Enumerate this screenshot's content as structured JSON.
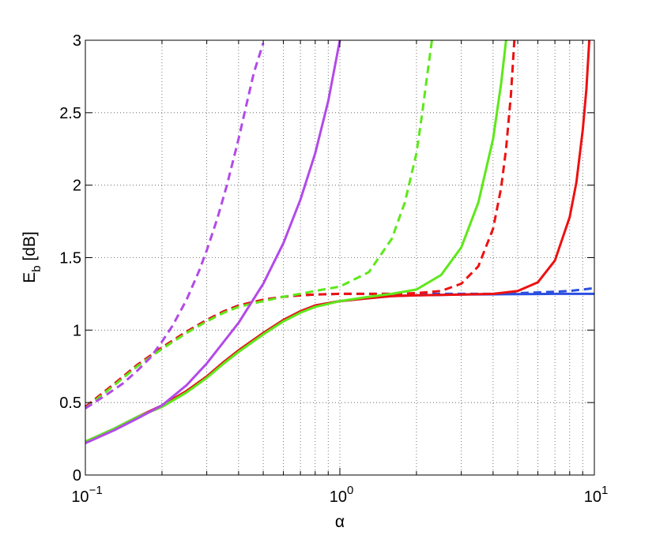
{
  "chart_data": {
    "type": "line",
    "xlabel": "α",
    "ylabel": {
      "main": "E",
      "sub": "b",
      "unit": " [dB]"
    },
    "x_scale": "log",
    "xlim": [
      0.1,
      10
    ],
    "ylim": [
      0,
      3
    ],
    "grid": true,
    "x_ticks": [
      {
        "value": 0.1,
        "base": "10",
        "exp": "−1"
      },
      {
        "value": 1,
        "base": "10",
        "exp": "0"
      },
      {
        "value": 10,
        "base": "10",
        "exp": "1"
      }
    ],
    "y_ticks": [
      "0",
      "0.5",
      "1",
      "1.5",
      "2",
      "2.5",
      "3"
    ],
    "series": [
      {
        "color": "#2b4fe0",
        "style": "solid",
        "x": [
          0.1,
          0.13,
          0.16,
          0.2,
          0.25,
          0.3,
          0.35,
          0.4,
          0.5,
          0.6,
          0.7,
          0.8,
          1.0,
          1.3,
          1.6,
          2,
          2.5,
          3,
          4,
          5,
          6,
          7,
          8,
          10
        ],
        "y": [
          0.23,
          0.32,
          0.4,
          0.48,
          0.58,
          0.68,
          0.78,
          0.86,
          0.98,
          1.07,
          1.13,
          1.17,
          1.2,
          1.22,
          1.235,
          1.24,
          1.243,
          1.245,
          1.247,
          1.248,
          1.249,
          1.25,
          1.25,
          1.25
        ]
      },
      {
        "color": "#2b4fe0",
        "style": "dashed",
        "x": [
          0.1,
          0.13,
          0.16,
          0.2,
          0.25,
          0.3,
          0.35,
          0.4,
          0.5,
          0.6,
          0.7,
          0.8,
          1.0,
          1.3,
          1.6,
          2,
          2.5,
          3,
          4,
          5,
          6,
          7,
          8,
          9,
          10
        ],
        "y": [
          0.47,
          0.63,
          0.76,
          0.88,
          0.99,
          1.07,
          1.13,
          1.17,
          1.21,
          1.23,
          1.24,
          1.245,
          1.25,
          1.25,
          1.25,
          1.25,
          1.25,
          1.25,
          1.25,
          1.255,
          1.26,
          1.265,
          1.27,
          1.28,
          1.29
        ]
      },
      {
        "color": "#ee1111",
        "style": "solid",
        "x": [
          0.1,
          0.13,
          0.16,
          0.2,
          0.25,
          0.3,
          0.35,
          0.4,
          0.5,
          0.6,
          0.7,
          0.8,
          1.0,
          1.3,
          1.6,
          2,
          2.5,
          3,
          4,
          5,
          6,
          7,
          8,
          8.5,
          9,
          9.3,
          9.55
        ],
        "y": [
          0.23,
          0.32,
          0.4,
          0.48,
          0.58,
          0.68,
          0.78,
          0.86,
          0.98,
          1.07,
          1.13,
          1.17,
          1.2,
          1.22,
          1.235,
          1.24,
          1.243,
          1.245,
          1.25,
          1.27,
          1.33,
          1.48,
          1.78,
          2.02,
          2.38,
          2.66,
          3.0
        ]
      },
      {
        "color": "#ee1111",
        "style": "dashed",
        "x": [
          0.1,
          0.13,
          0.16,
          0.2,
          0.25,
          0.3,
          0.35,
          0.4,
          0.5,
          0.6,
          0.7,
          0.8,
          1.0,
          1.3,
          1.6,
          2,
          2.5,
          3,
          3.5,
          4,
          4.3,
          4.5,
          4.7,
          4.85
        ],
        "y": [
          0.47,
          0.63,
          0.76,
          0.88,
          0.99,
          1.07,
          1.13,
          1.17,
          1.21,
          1.23,
          1.24,
          1.245,
          1.25,
          1.25,
          1.25,
          1.255,
          1.27,
          1.32,
          1.44,
          1.7,
          1.98,
          2.25,
          2.62,
          3.0
        ]
      },
      {
        "color": "#5ee81a",
        "style": "solid",
        "x": [
          0.1,
          0.13,
          0.16,
          0.2,
          0.25,
          0.3,
          0.35,
          0.4,
          0.5,
          0.6,
          0.7,
          0.8,
          1.0,
          1.3,
          1.6,
          2,
          2.5,
          3,
          3.5,
          4,
          4.3,
          4.5
        ],
        "y": [
          0.23,
          0.32,
          0.4,
          0.47,
          0.57,
          0.67,
          0.77,
          0.85,
          0.97,
          1.06,
          1.12,
          1.16,
          1.2,
          1.23,
          1.25,
          1.28,
          1.38,
          1.57,
          1.88,
          2.32,
          2.7,
          3.0
        ]
      },
      {
        "color": "#5ee81a",
        "style": "dashed",
        "x": [
          0.1,
          0.13,
          0.16,
          0.2,
          0.25,
          0.3,
          0.35,
          0.4,
          0.5,
          0.6,
          0.7,
          0.8,
          1.0,
          1.3,
          1.6,
          1.8,
          2.0,
          2.1,
          2.2,
          2.3
        ],
        "y": [
          0.46,
          0.62,
          0.75,
          0.87,
          0.98,
          1.06,
          1.12,
          1.16,
          1.2,
          1.23,
          1.25,
          1.27,
          1.3,
          1.4,
          1.63,
          1.88,
          2.22,
          2.48,
          2.75,
          3.0
        ]
      },
      {
        "color": "#b24ae8",
        "style": "solid",
        "x": [
          0.1,
          0.13,
          0.16,
          0.2,
          0.25,
          0.3,
          0.35,
          0.4,
          0.5,
          0.6,
          0.7,
          0.8,
          0.9,
          1.0
        ],
        "y": [
          0.22,
          0.31,
          0.39,
          0.48,
          0.62,
          0.77,
          0.92,
          1.05,
          1.32,
          1.6,
          1.9,
          2.22,
          2.58,
          3.0
        ]
      },
      {
        "color": "#b24ae8",
        "style": "dashed",
        "x": [
          0.1,
          0.12,
          0.14,
          0.16,
          0.18,
          0.2,
          0.22,
          0.25,
          0.28,
          0.3,
          0.33,
          0.36,
          0.4,
          0.43,
          0.46,
          0.5
        ],
        "y": [
          0.46,
          0.55,
          0.63,
          0.72,
          0.81,
          0.92,
          1.03,
          1.21,
          1.41,
          1.55,
          1.77,
          2.0,
          2.32,
          2.56,
          2.78,
          2.98
        ]
      }
    ]
  }
}
